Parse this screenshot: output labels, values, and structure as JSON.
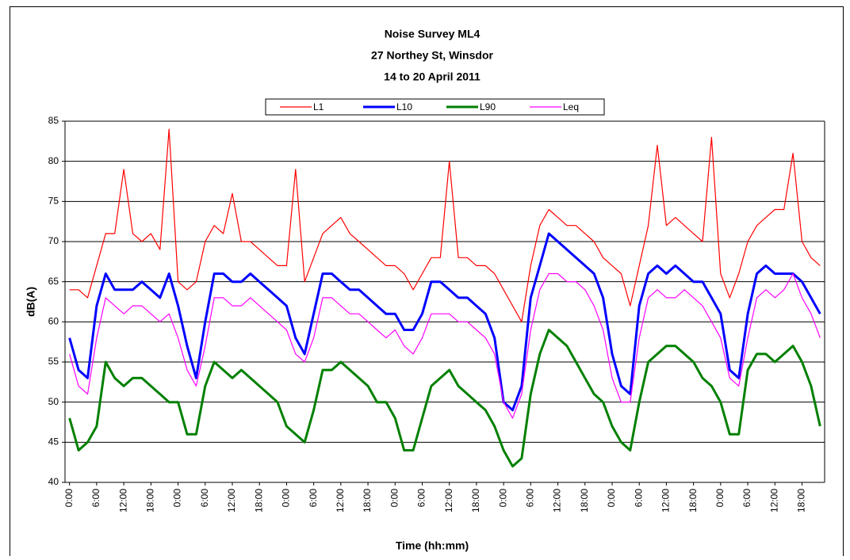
{
  "chart_data": {
    "type": "line",
    "title": [
      "Noise Survey ML4",
      "27 Northey St, Winsdor",
      "14 to 20 April 2011"
    ],
    "y_label": "dB(A)",
    "x_label": "Time (hh:mm)",
    "ylim": [
      40,
      85
    ],
    "yticks": [
      40,
      45,
      50,
      55,
      60,
      65,
      70,
      75,
      80,
      85
    ],
    "grid": true,
    "legend": "top",
    "categories": [
      "0:00",
      null,
      null,
      "6:00",
      null,
      null,
      "12:00",
      null,
      null,
      "18:00",
      null,
      null,
      "0:00",
      null,
      null,
      "6:00",
      null,
      null,
      "12:00",
      null,
      null,
      "18:00",
      null,
      null,
      "0:00",
      null,
      null,
      "6:00",
      null,
      null,
      "12:00",
      null,
      null,
      "18:00",
      null,
      null,
      "0:00",
      null,
      null,
      "6:00",
      null,
      null,
      "12:00",
      null,
      null,
      "18:00",
      null,
      null,
      "0:00",
      null,
      null,
      "6:00",
      null,
      null,
      "12:00",
      null,
      null,
      "18:00",
      null,
      null,
      "0:00",
      null,
      null,
      "6:00",
      null,
      null,
      "12:00",
      null,
      null,
      "18:00",
      null,
      null,
      "0:00",
      null,
      null,
      "6:00",
      null,
      null,
      "12:00",
      null,
      null,
      "18:00",
      null,
      null
    ],
    "series": [
      {
        "name": "L1",
        "color": "#ff0000",
        "width": 1.2,
        "values": [
          64,
          64,
          63,
          67,
          71,
          71,
          79,
          71,
          70,
          71,
          69,
          84,
          65,
          64,
          65,
          70,
          72,
          71,
          76,
          70,
          70,
          69,
          68,
          67,
          67,
          79,
          65,
          68,
          71,
          72,
          73,
          71,
          70,
          69,
          68,
          67,
          67,
          66,
          64,
          66,
          68,
          68,
          80,
          68,
          68,
          67,
          67,
          66,
          64,
          62,
          60,
          67,
          72,
          74,
          73,
          72,
          72,
          71,
          70,
          68,
          67,
          66,
          62,
          67,
          72,
          82,
          72,
          73,
          72,
          71,
          70,
          83,
          66,
          63,
          66,
          70,
          72,
          73,
          74,
          74,
          81,
          70,
          68,
          67
        ]
      },
      {
        "name": "L10",
        "color": "#0000ff",
        "width": 3,
        "values": [
          58,
          54,
          53,
          62,
          66,
          64,
          64,
          64,
          65,
          64,
          63,
          66,
          62,
          57,
          53,
          60,
          66,
          66,
          65,
          65,
          66,
          65,
          64,
          63,
          62,
          58,
          56,
          61,
          66,
          66,
          65,
          64,
          64,
          63,
          62,
          61,
          61,
          59,
          59,
          61,
          65,
          65,
          64,
          63,
          63,
          62,
          61,
          58,
          50,
          49,
          52,
          63,
          67,
          71,
          70,
          69,
          68,
          67,
          66,
          63,
          56,
          52,
          51,
          62,
          66,
          67,
          66,
          67,
          66,
          65,
          65,
          63,
          61,
          54,
          53,
          61,
          66,
          67,
          66,
          66,
          66,
          65,
          63,
          61
        ]
      },
      {
        "name": "L90",
        "color": "#008000",
        "width": 3,
        "values": [
          48,
          44,
          45,
          47,
          55,
          53,
          52,
          53,
          53,
          52,
          51,
          50,
          50,
          46,
          46,
          52,
          55,
          54,
          53,
          54,
          53,
          52,
          51,
          50,
          47,
          46,
          45,
          49,
          54,
          54,
          55,
          54,
          53,
          52,
          50,
          50,
          48,
          44,
          44,
          48,
          52,
          53,
          54,
          52,
          51,
          50,
          49,
          47,
          44,
          42,
          43,
          51,
          56,
          59,
          58,
          57,
          55,
          53,
          51,
          50,
          47,
          45,
          44,
          50,
          55,
          56,
          57,
          57,
          56,
          55,
          53,
          52,
          50,
          46,
          46,
          54,
          56,
          56,
          55,
          56,
          57,
          55,
          52,
          47
        ]
      },
      {
        "name": "Leq",
        "color": "#ff00ff",
        "width": 1.2,
        "values": [
          56,
          52,
          51,
          58,
          63,
          62,
          61,
          62,
          62,
          61,
          60,
          61,
          58,
          54,
          52,
          57,
          63,
          63,
          62,
          62,
          63,
          62,
          61,
          60,
          59,
          56,
          55,
          58,
          63,
          63,
          62,
          61,
          61,
          60,
          59,
          58,
          59,
          57,
          56,
          58,
          61,
          61,
          61,
          60,
          60,
          59,
          58,
          56,
          50,
          48,
          51,
          59,
          64,
          66,
          66,
          65,
          65,
          64,
          62,
          59,
          53,
          50,
          50,
          58,
          63,
          64,
          63,
          63,
          64,
          63,
          62,
          60,
          58,
          53,
          52,
          58,
          63,
          64,
          63,
          64,
          66,
          63,
          61,
          58
        ]
      }
    ]
  }
}
